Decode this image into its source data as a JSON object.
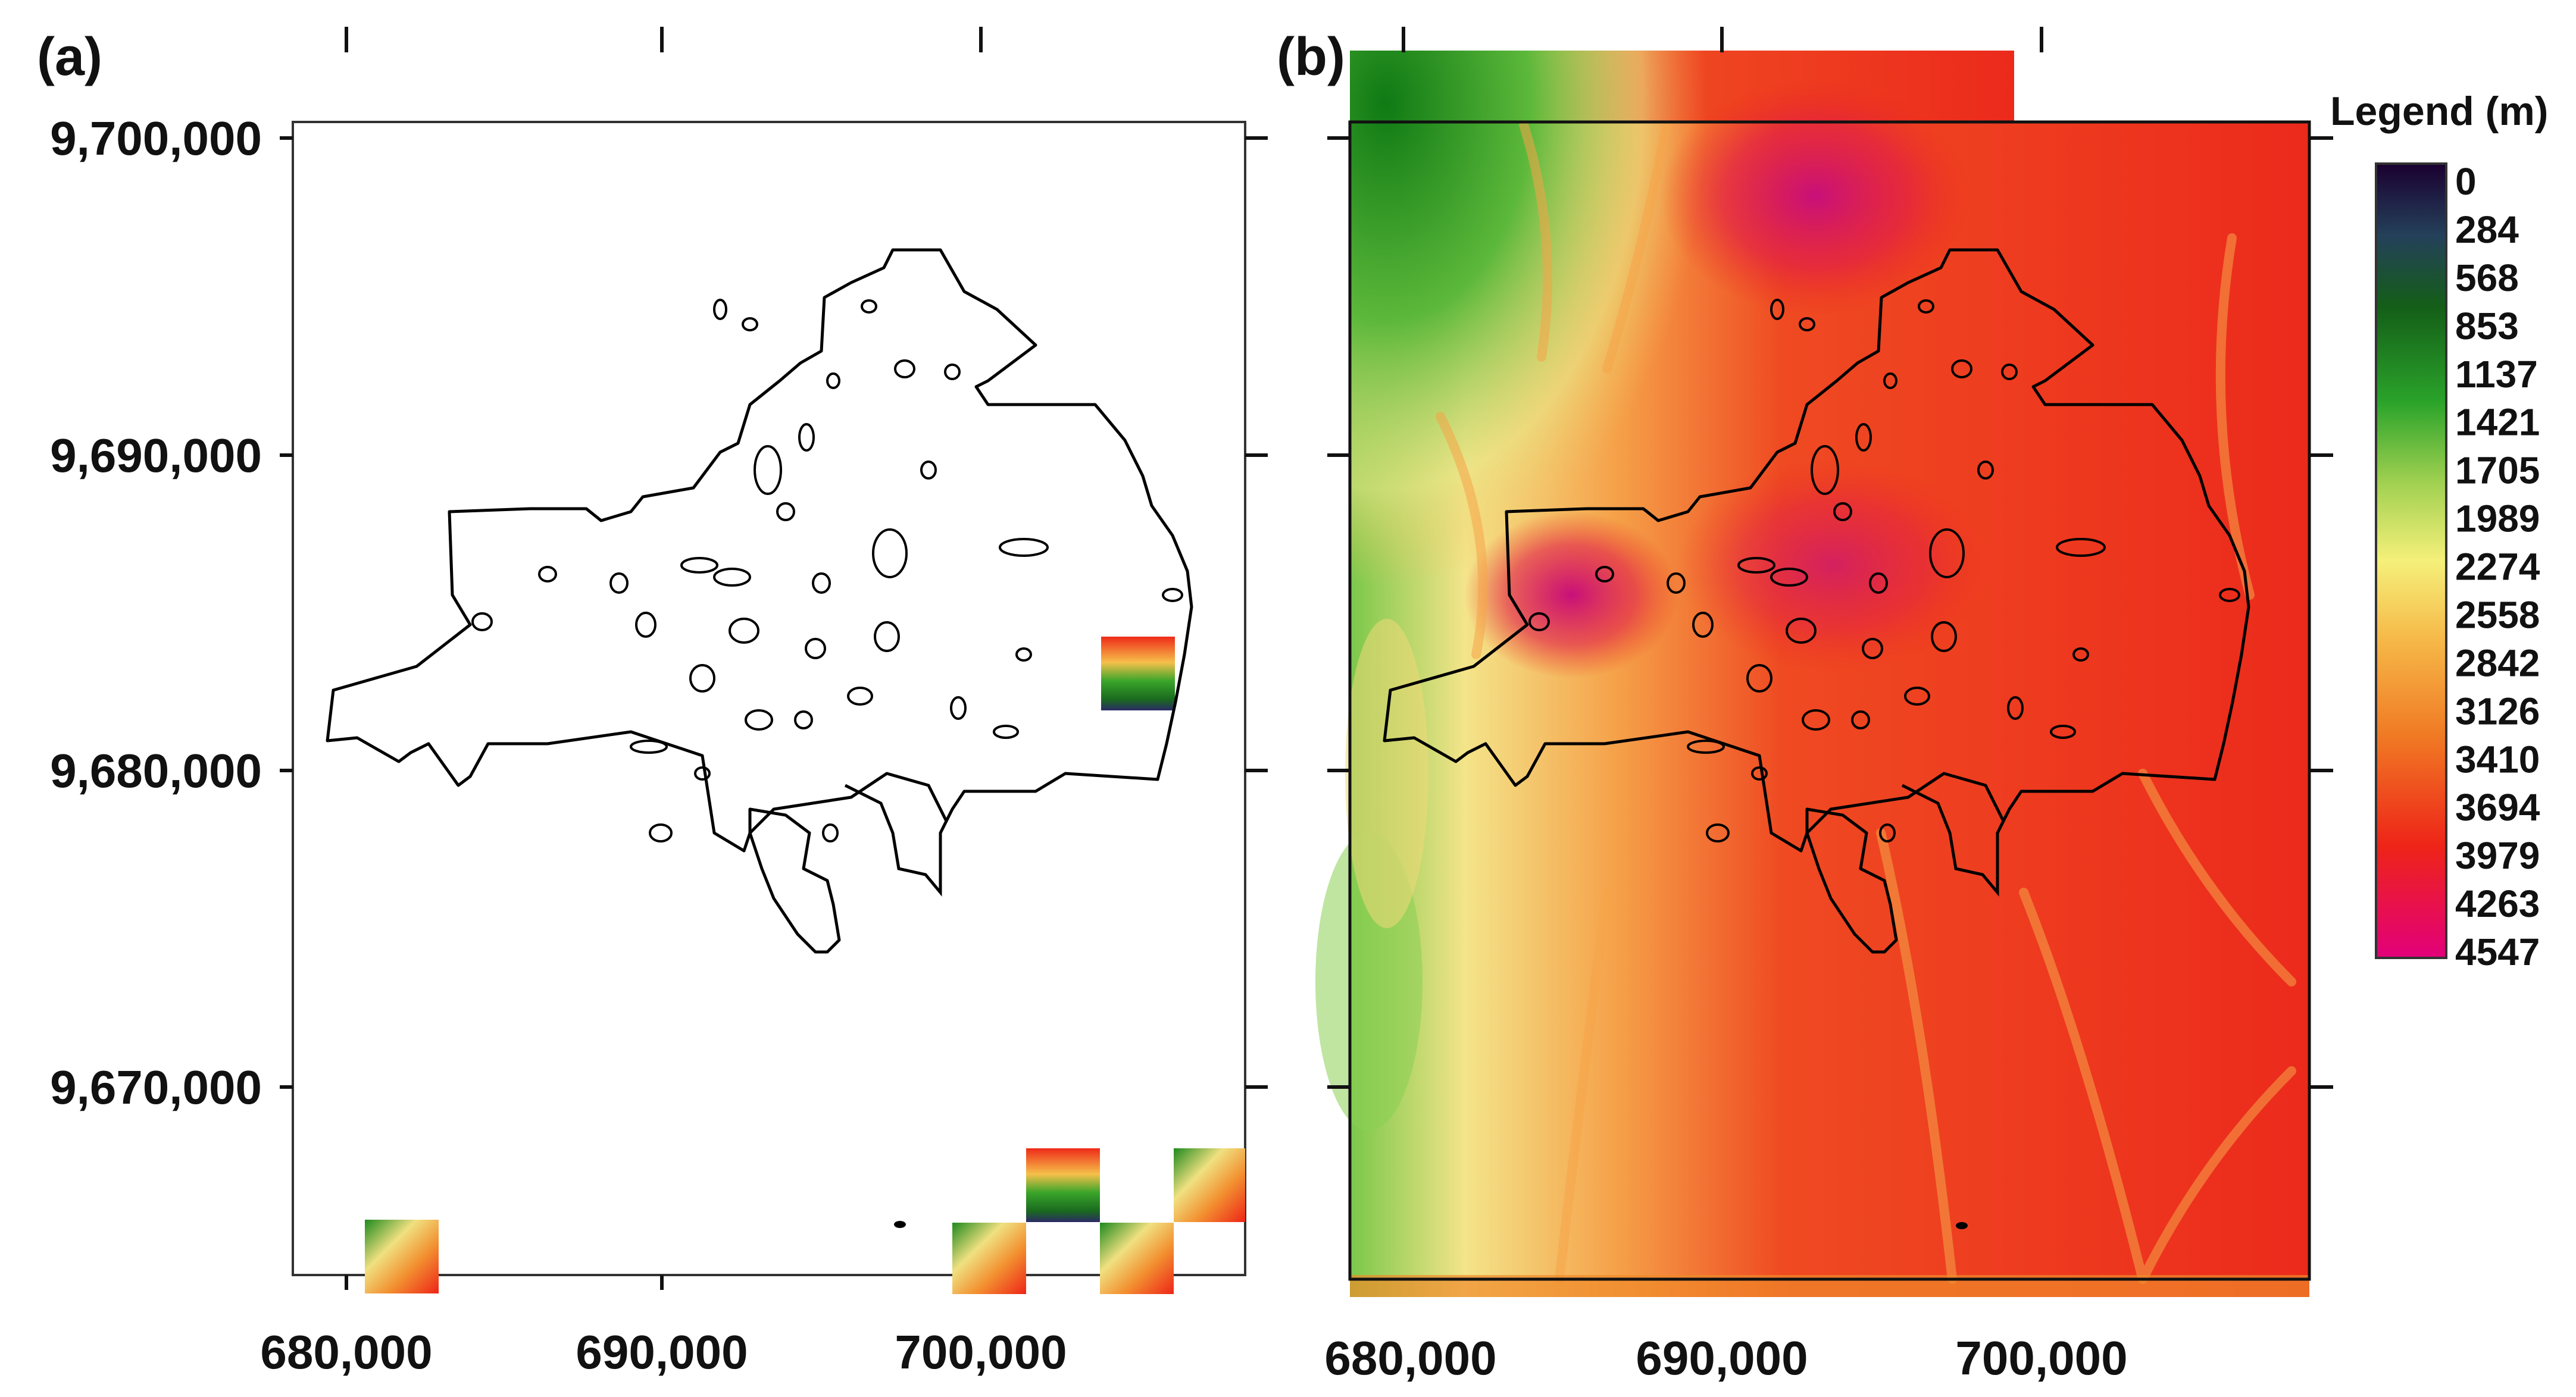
{
  "panels": {
    "a": {
      "label": "(a)"
    },
    "b": {
      "label": "(b)"
    }
  },
  "axes": {
    "y_ticks": [
      "9,700,000",
      "9,690,000",
      "9,680,000",
      "9,670,000"
    ],
    "x_ticks": [
      "680,000",
      "690,000",
      "700,000"
    ]
  },
  "legend": {
    "title": "Legend (m)",
    "values": [
      "0",
      "284",
      "568",
      "853",
      "1137",
      "1421",
      "1705",
      "1989",
      "2274",
      "2558",
      "2842",
      "3126",
      "3410",
      "3694",
      "3979",
      "4263",
      "4547"
    ],
    "colors": [
      "#1a0030",
      "#2b2a66",
      "#1f4a3a",
      "#166a1e",
      "#1e8a1e",
      "#3aa52a",
      "#7cc040",
      "#b8d860",
      "#f0f080",
      "#f7d060",
      "#f4b040",
      "#f29030",
      "#f06a20",
      "#ef4a18",
      "#ee2a18",
      "#e81040",
      "#e2007a"
    ]
  },
  "colors": {
    "lowland_green": "#1a8a1a",
    "highland_red": "#e8141c",
    "peak_magenta": "#d0107a",
    "outline": "#000000"
  }
}
